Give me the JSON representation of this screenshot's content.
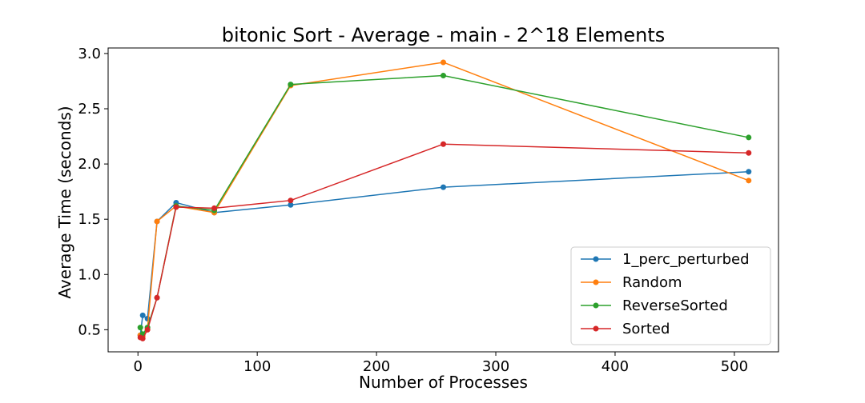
{
  "chart_data": {
    "type": "line",
    "title": "bitonic Sort - Average - main - 2^18 Elements",
    "xlabel": "Number of Processes",
    "ylabel": "Average Time (seconds)",
    "xlim": [
      -25,
      537
    ],
    "ylim": [
      0.3,
      3.05
    ],
    "xticks": [
      0,
      100,
      200,
      300,
      400,
      500
    ],
    "yticks": [
      0.5,
      1.0,
      1.5,
      2.0,
      2.5,
      3.0
    ],
    "grid": false,
    "legend_position": "lower right",
    "x": [
      2,
      4,
      8,
      16,
      32,
      64,
      128,
      256,
      512
    ],
    "series": [
      {
        "name": "1_perc_perturbed",
        "color": "#1f77b4",
        "values": [
          0.45,
          0.63,
          0.6,
          1.48,
          1.65,
          1.56,
          1.63,
          1.79,
          1.93
        ]
      },
      {
        "name": "Random",
        "color": "#ff7f0e",
        "values": [
          0.45,
          0.44,
          0.51,
          1.48,
          1.62,
          1.56,
          2.71,
          2.92,
          1.85
        ]
      },
      {
        "name": "ReverseSorted",
        "color": "#2ca02c",
        "values": [
          0.52,
          0.46,
          0.52,
          0.79,
          1.62,
          1.58,
          2.72,
          2.8,
          2.24
        ]
      },
      {
        "name": "Sorted",
        "color": "#d62728",
        "values": [
          0.43,
          0.42,
          0.5,
          0.79,
          1.61,
          1.6,
          1.67,
          2.18,
          2.1
        ]
      }
    ]
  }
}
